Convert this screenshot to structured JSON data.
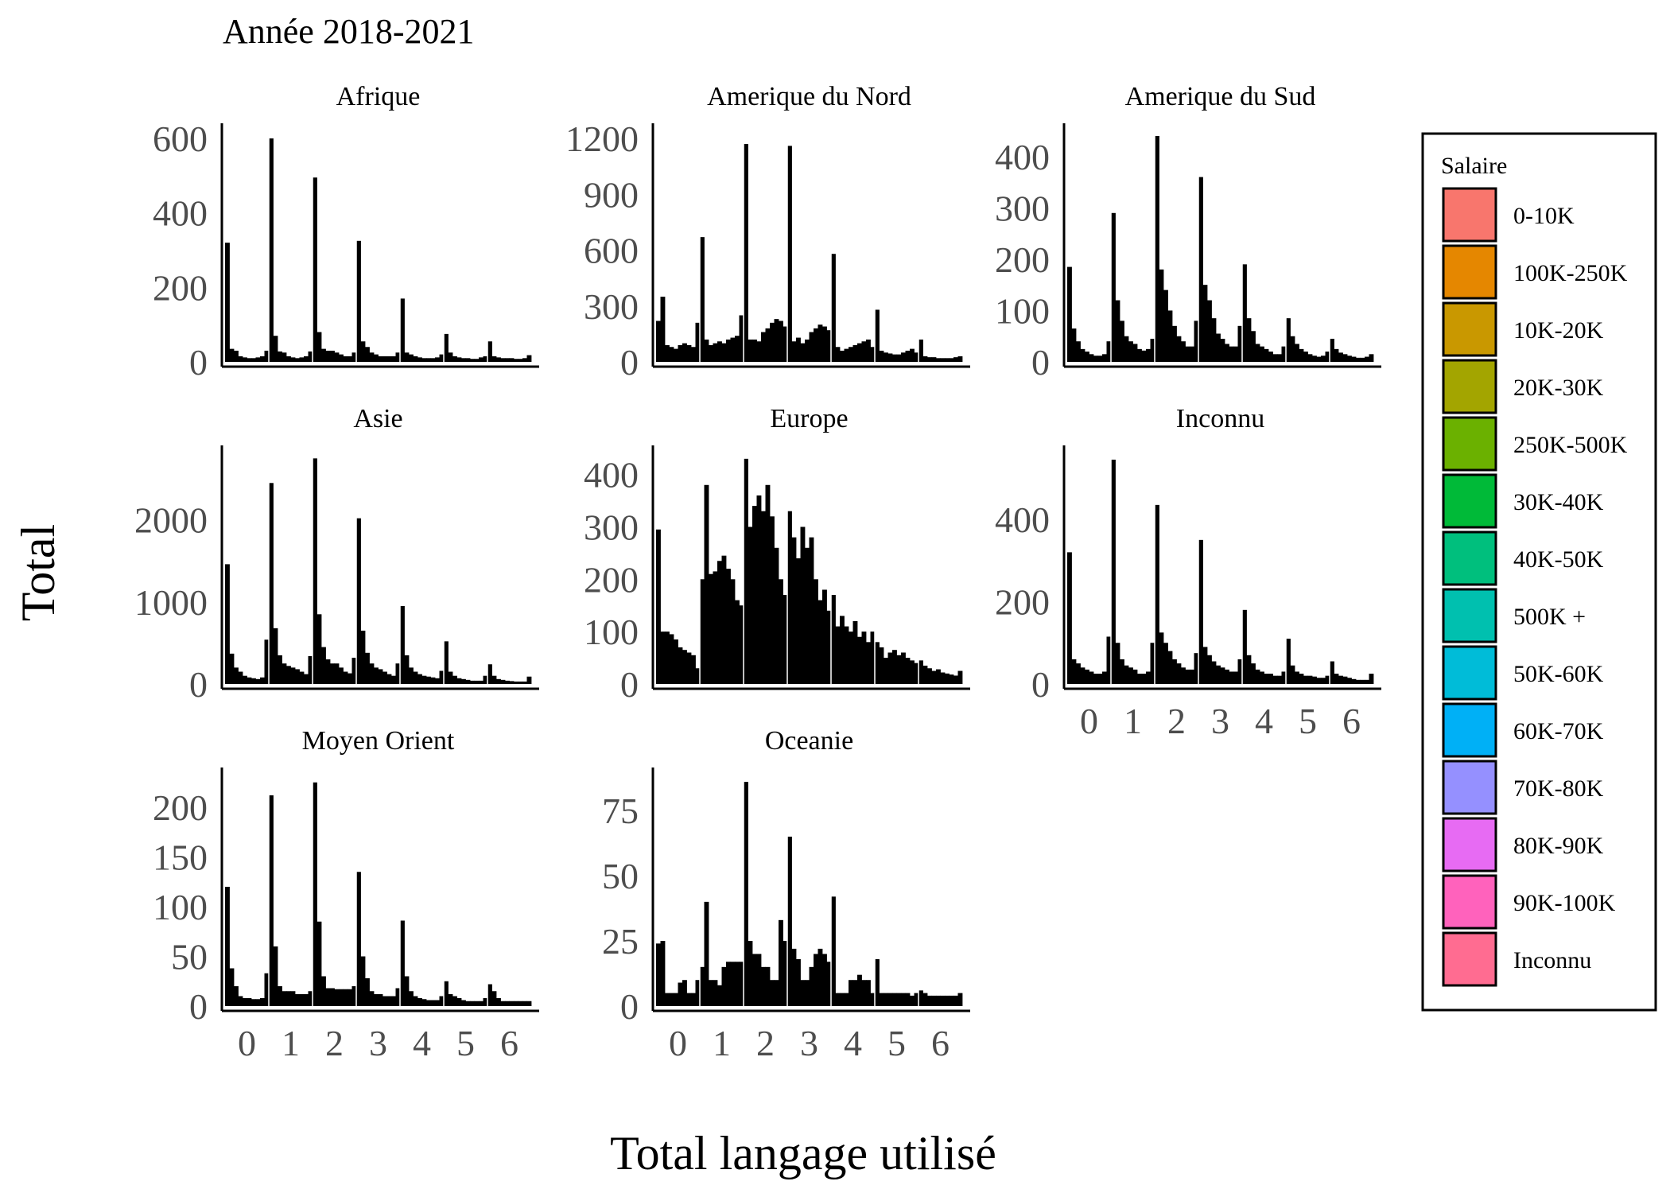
{
  "chart_data": {
    "type": "bar",
    "title": "Année 2018-2021",
    "xlabel": "Total langage utilisé",
    "ylabel": "Total",
    "x_ticks": [
      "0",
      "1",
      "2",
      "3",
      "4",
      "5",
      "6"
    ],
    "xlim": [
      -0.5,
      6.5
    ],
    "bins_per_unit": 10,
    "legend": {
      "title": "Salaire",
      "position": "right",
      "entries": [
        {
          "label": "0-10K",
          "color": "#F8766D"
        },
        {
          "label": "100K-250K",
          "color": "#E58700"
        },
        {
          "label": "10K-20K",
          "color": "#C99800"
        },
        {
          "label": "20K-30K",
          "color": "#A3A500"
        },
        {
          "label": "250K-500K",
          "color": "#6BB100"
        },
        {
          "label": "30K-40K",
          "color": "#00BA38"
        },
        {
          "label": "40K-50K",
          "color": "#00BF7D"
        },
        {
          "label": "500K +",
          "color": "#00C0AF"
        },
        {
          "label": "50K-60K",
          "color": "#00BCD8"
        },
        {
          "label": "60K-70K",
          "color": "#00B0F6"
        },
        {
          "label": "70K-80K",
          "color": "#9590FF"
        },
        {
          "label": "80K-90K",
          "color": "#E76BF3"
        },
        {
          "label": "90K-100K",
          "color": "#FF62BC"
        },
        {
          "label": "Inconnu",
          "color": "#FF6C91"
        }
      ]
    },
    "facets": [
      {
        "name": "Afrique",
        "ylim": [
          0,
          630
        ],
        "y_ticks": [
          0,
          200,
          400,
          600
        ],
        "values": [
          320,
          35,
          30,
          15,
          12,
          10,
          10,
          12,
          15,
          30,
          600,
          70,
          28,
          25,
          15,
          12,
          10,
          12,
          15,
          28,
          495,
          80,
          35,
          30,
          30,
          25,
          20,
          15,
          15,
          25,
          325,
          55,
          40,
          25,
          20,
          15,
          15,
          15,
          15,
          25,
          170,
          25,
          20,
          15,
          12,
          10,
          10,
          10,
          12,
          20,
          75,
          25,
          15,
          12,
          10,
          10,
          8,
          8,
          12,
          15,
          55,
          15,
          12,
          10,
          10,
          10,
          8,
          8,
          10,
          18
        ]
      },
      {
        "name": "Amerique du Nord",
        "ylim": [
          0,
          1260
        ],
        "y_ticks": [
          0,
          300,
          600,
          900,
          1200
        ],
        "values": [
          220,
          350,
          90,
          80,
          70,
          90,
          100,
          90,
          80,
          210,
          670,
          120,
          90,
          100,
          110,
          100,
          120,
          130,
          140,
          250,
          1170,
          120,
          120,
          110,
          160,
          180,
          210,
          230,
          220,
          190,
          1160,
          110,
          130,
          100,
          120,
          160,
          180,
          200,
          190,
          170,
          580,
          80,
          60,
          70,
          80,
          90,
          100,
          110,
          120,
          80,
          280,
          60,
          50,
          45,
          40,
          40,
          50,
          60,
          70,
          50,
          120,
          30,
          25,
          25,
          20,
          20,
          20,
          20,
          25,
          30
        ]
      },
      {
        "name": "Amerique du Sud",
        "ylim": [
          0,
          457
        ],
        "y_ticks": [
          0,
          100,
          200,
          300,
          400
        ],
        "values": [
          185,
          65,
          40,
          25,
          20,
          15,
          12,
          12,
          15,
          40,
          290,
          120,
          80,
          50,
          40,
          35,
          25,
          22,
          25,
          45,
          440,
          180,
          140,
          100,
          70,
          50,
          40,
          30,
          30,
          80,
          360,
          150,
          120,
          85,
          55,
          45,
          35,
          30,
          30,
          70,
          190,
          85,
          60,
          35,
          30,
          25,
          20,
          15,
          15,
          30,
          85,
          50,
          35,
          25,
          20,
          15,
          12,
          10,
          12,
          20,
          45,
          25,
          18,
          15,
          12,
          10,
          8,
          8,
          10,
          15
        ]
      },
      {
        "name": "Asie",
        "ylim": [
          0,
          2860
        ],
        "y_ticks": [
          0,
          1000,
          2000
        ],
        "values": [
          1460,
          370,
          200,
          150,
          100,
          80,
          70,
          60,
          80,
          540,
          2450,
          680,
          350,
          250,
          220,
          200,
          180,
          150,
          120,
          340,
          2750,
          850,
          450,
          300,
          250,
          250,
          200,
          150,
          130,
          320,
          2020,
          650,
          380,
          250,
          200,
          180,
          150,
          120,
          100,
          250,
          950,
          350,
          200,
          150,
          120,
          100,
          90,
          80,
          70,
          160,
          520,
          150,
          100,
          70,
          60,
          50,
          40,
          40,
          40,
          100,
          240,
          100,
          60,
          50,
          40,
          35,
          30,
          30,
          30,
          90
        ]
      },
      {
        "name": "Europe",
        "ylim": [
          0,
          448
        ],
        "y_ticks": [
          0,
          100,
          200,
          300,
          400
        ],
        "values": [
          295,
          100,
          100,
          95,
          85,
          70,
          65,
          60,
          55,
          30,
          200,
          380,
          210,
          215,
          235,
          245,
          220,
          200,
          160,
          150,
          430,
          300,
          340,
          360,
          330,
          380,
          320,
          260,
          200,
          170,
          330,
          280,
          240,
          300,
          260,
          280,
          200,
          160,
          180,
          140,
          170,
          110,
          130,
          110,
          100,
          120,
          90,
          100,
          80,
          100,
          80,
          70,
          50,
          60,
          65,
          55,
          60,
          50,
          45,
          40,
          45,
          35,
          30,
          25,
          28,
          22,
          20,
          18,
          16,
          25
        ]
      },
      {
        "name": "Inconnu",
        "ylim": [
          0,
          570
        ],
        "y_ticks": [
          0,
          200,
          400
        ],
        "values": [
          320,
          60,
          50,
          40,
          35,
          30,
          25,
          25,
          30,
          115,
          545,
          100,
          60,
          45,
          40,
          35,
          25,
          25,
          30,
          100,
          435,
          125,
          100,
          80,
          60,
          50,
          40,
          35,
          35,
          75,
          350,
          90,
          70,
          55,
          45,
          40,
          35,
          30,
          30,
          60,
          180,
          70,
          50,
          35,
          30,
          25,
          25,
          20,
          20,
          30,
          110,
          45,
          30,
          25,
          20,
          20,
          18,
          15,
          15,
          20,
          55,
          25,
          20,
          18,
          15,
          12,
          10,
          10,
          10,
          25
        ]
      },
      {
        "name": "Moyen Orient",
        "ylim": [
          0,
          236
        ],
        "y_ticks": [
          0,
          50,
          100,
          150,
          200
        ],
        "values": [
          120,
          38,
          20,
          10,
          8,
          8,
          7,
          7,
          8,
          33,
          212,
          60,
          20,
          15,
          15,
          15,
          12,
          12,
          12,
          15,
          225,
          85,
          30,
          18,
          18,
          17,
          17,
          17,
          17,
          20,
          135,
          50,
          28,
          15,
          12,
          12,
          10,
          10,
          10,
          18,
          86,
          30,
          15,
          10,
          8,
          7,
          6,
          6,
          6,
          10,
          25,
          12,
          10,
          8,
          6,
          5,
          5,
          5,
          5,
          8,
          22,
          15,
          8,
          5,
          5,
          5,
          5,
          5,
          5,
          5
        ]
      },
      {
        "name": "Oceanie",
        "ylim": [
          0,
          90
        ],
        "y_ticks": [
          0,
          25,
          50,
          75
        ],
        "values": [
          24,
          25,
          5,
          5,
          5,
          9,
          10,
          5,
          5,
          10,
          15,
          40,
          10,
          10,
          8,
          15,
          17,
          17,
          17,
          17,
          86,
          25,
          20,
          20,
          15,
          15,
          10,
          10,
          33,
          25,
          65,
          22,
          18,
          10,
          10,
          15,
          20,
          22,
          20,
          17,
          42,
          5,
          5,
          5,
          10,
          10,
          12,
          10,
          10,
          5,
          18,
          5,
          5,
          5,
          5,
          5,
          5,
          5,
          4,
          5,
          6,
          5,
          4,
          4,
          4,
          4,
          4,
          4,
          4,
          5
        ]
      }
    ]
  }
}
